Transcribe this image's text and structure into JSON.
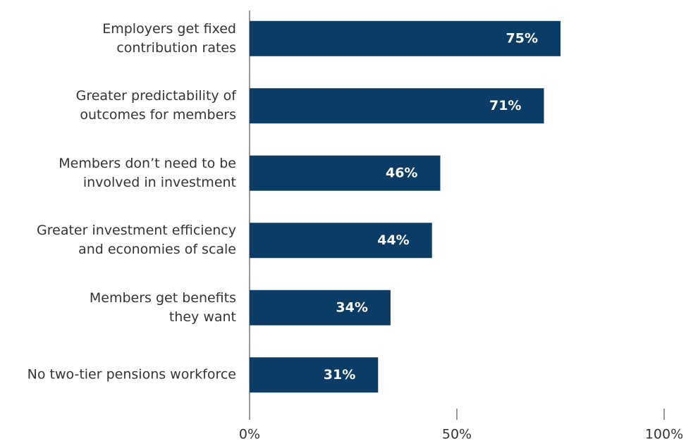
{
  "chart_data": {
    "type": "bar",
    "orientation": "horizontal",
    "categories": [
      "Employers get fixed\ncontribution rates",
      "Greater predictability of\noutcomes for members",
      "Members don’t need to be\ninvolved in investment",
      "Greater investment efficiency\nand economies of scale",
      "Members get benefits\nthey want",
      "No two-tier pensions workforce"
    ],
    "values": [
      75,
      71,
      46,
      44,
      34,
      31
    ],
    "value_labels": [
      "75%",
      "71%",
      "46%",
      "44%",
      "34%",
      "31%"
    ],
    "color": "#0b3c66",
    "xlim": [
      0,
      100
    ],
    "xticks": [
      {
        "value": 0,
        "label": "0%"
      },
      {
        "value": 50,
        "label": "50%"
      },
      {
        "value": 100,
        "label": "100%"
      }
    ]
  }
}
